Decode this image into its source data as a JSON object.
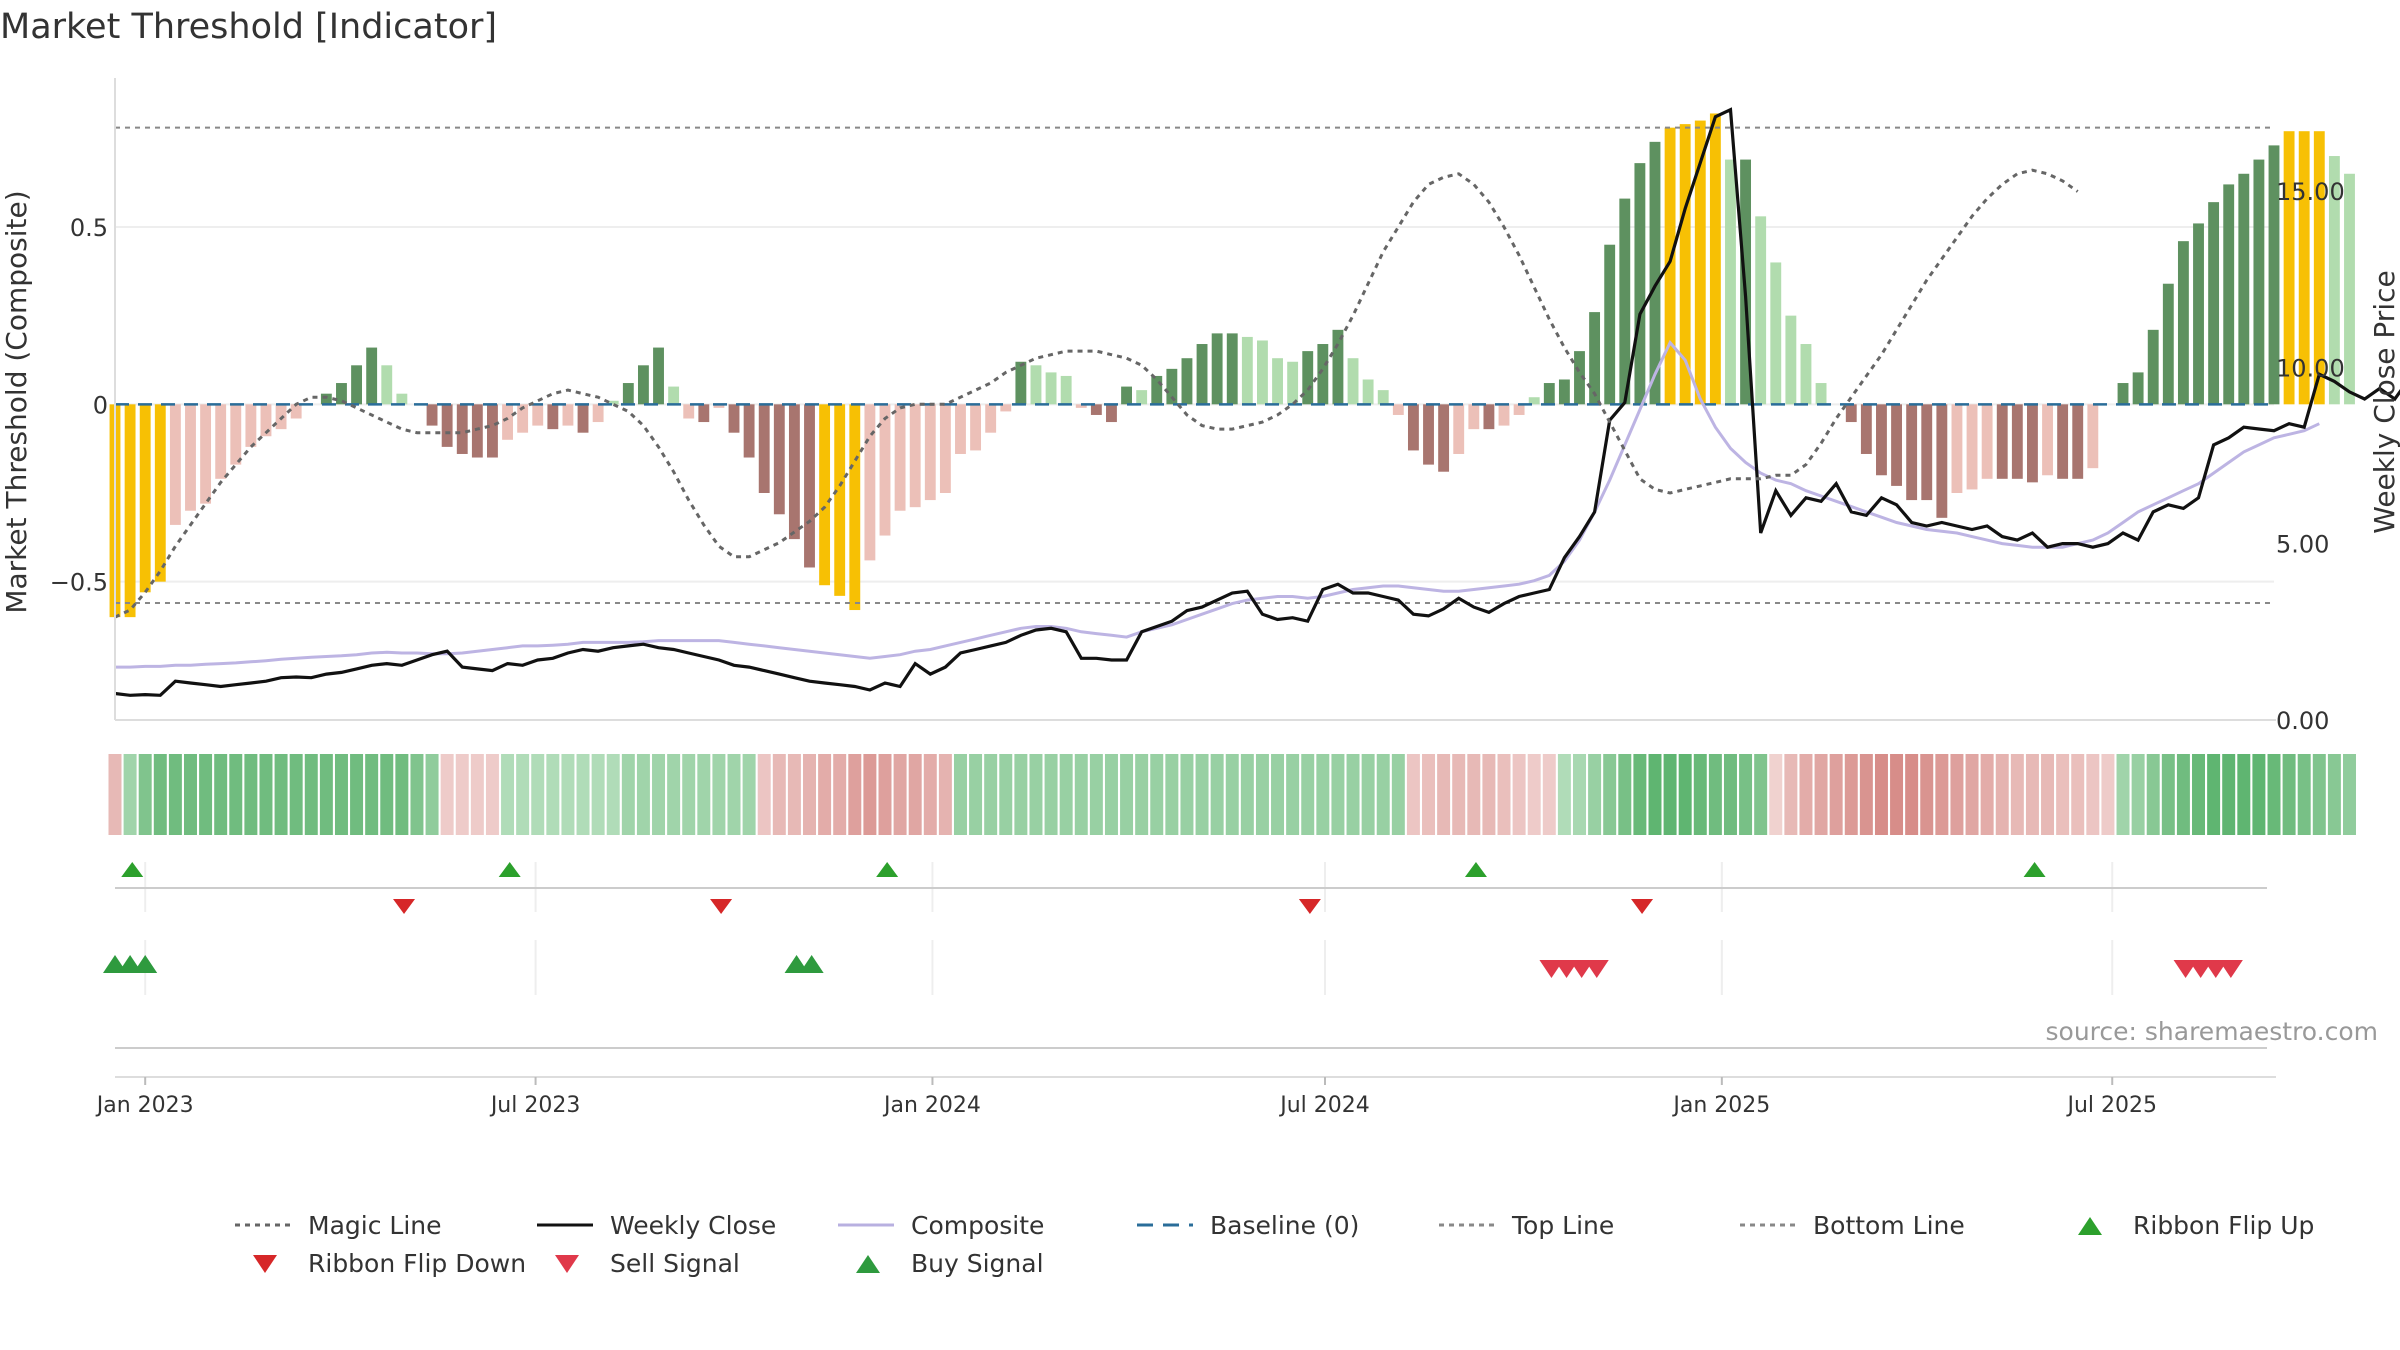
{
  "chart_data": {
    "type": "bar",
    "title": "Market Threshold [Indicator]",
    "ylabel_left": "Market Threshold (Composite)",
    "ylabel_right": "Weekly Close Price",
    "source": "source: sharemaestro.com",
    "x_start": "2022-12-18",
    "x_end": "2025-09-14",
    "week_count": 144,
    "ylim_left": [
      -0.89,
      0.92
    ],
    "ylim_right": [
      0,
      18.2
    ],
    "yticks_left": [
      {
        "value": -0.5,
        "label": "−0.5"
      },
      {
        "value": 0,
        "label": "0"
      },
      {
        "value": 0.5,
        "label": "0.5"
      }
    ],
    "yticks_right": [
      {
        "value": 0,
        "label": "0.00"
      },
      {
        "value": 5,
        "label": "5.00"
      },
      {
        "value": 10,
        "label": "10.00"
      },
      {
        "value": 15,
        "label": "15.00"
      }
    ],
    "xticks": [
      {
        "date": "2023-01-01",
        "label": "Jan 2023"
      },
      {
        "date": "2023-07-01",
        "label": "Jul 2023"
      },
      {
        "date": "2024-01-01",
        "label": "Jan 2024"
      },
      {
        "date": "2024-07-01",
        "label": "Jul 2024"
      },
      {
        "date": "2025-01-01",
        "label": "Jan 2025"
      },
      {
        "date": "2025-07-01",
        "label": "Jul 2025"
      }
    ],
    "top_line": 0.78,
    "bottom_line": -0.56,
    "threshold_bars": [
      -0.6,
      -0.6,
      -0.53,
      -0.5,
      -0.34,
      -0.3,
      -0.28,
      -0.21,
      -0.17,
      -0.12,
      -0.09,
      -0.07,
      -0.04,
      0,
      0.03,
      0.06,
      0.11,
      0.16,
      0.11,
      0.03,
      0,
      -0.06,
      -0.12,
      -0.14,
      -0.15,
      -0.15,
      -0.1,
      -0.08,
      -0.06,
      -0.07,
      -0.06,
      -0.08,
      -0.05,
      0.01,
      0.06,
      0.11,
      0.16,
      0.05,
      -0.04,
      -0.05,
      -0.01,
      -0.08,
      -0.15,
      -0.25,
      -0.31,
      -0.38,
      -0.46,
      -0.51,
      -0.54,
      -0.58,
      -0.44,
      -0.37,
      -0.3,
      -0.29,
      -0.27,
      -0.25,
      -0.14,
      -0.13,
      -0.08,
      -0.02,
      0.12,
      0.11,
      0.09,
      0.08,
      -0.01,
      -0.03,
      -0.05,
      0.05,
      0.04,
      0.08,
      0.1,
      0.13,
      0.17,
      0.2,
      0.2,
      0.19,
      0.18,
      0.13,
      0.12,
      0.15,
      0.17,
      0.21,
      0.13,
      0.07,
      0.04,
      -0.03,
      -0.13,
      -0.17,
      -0.19,
      -0.14,
      -0.07,
      -0.07,
      -0.06,
      -0.03,
      0.02,
      0.06,
      0.07,
      0.15,
      0.26,
      0.45,
      0.58,
      0.68,
      0.74,
      0.78,
      0.79,
      0.8,
      0.82,
      0.69,
      0.69,
      0.53,
      0.4,
      0.25,
      0.17,
      0.06,
      0,
      -0.05,
      -0.14,
      -0.2,
      -0.23,
      -0.27,
      -0.27,
      -0.32,
      -0.25,
      -0.24,
      -0.21,
      -0.21,
      -0.21,
      -0.22,
      -0.2,
      -0.21,
      -0.21,
      -0.18,
      0,
      0.06,
      0.09,
      0.21,
      0.34,
      0.46,
      0.51,
      0.57,
      0.62,
      0.65,
      0.69,
      0.73,
      0.77,
      0.77,
      0.77,
      0.7,
      0.65
    ],
    "ribbon_scores": [
      -0.3,
      0.4,
      0.6,
      0.7,
      0.7,
      0.7,
      0.7,
      0.7,
      0.7,
      0.7,
      0.7,
      0.7,
      0.7,
      0.7,
      0.7,
      0.7,
      0.7,
      0.7,
      0.7,
      0.7,
      0.6,
      0.5,
      -0.15,
      -0.15,
      -0.15,
      -0.15,
      0.3,
      0.3,
      0.3,
      0.3,
      0.3,
      0.3,
      0.3,
      0.3,
      0.4,
      0.4,
      0.4,
      0.4,
      0.4,
      0.4,
      0.4,
      0.4,
      0.4,
      -0.2,
      -0.3,
      -0.3,
      -0.35,
      -0.4,
      -0.4,
      -0.5,
      -0.55,
      -0.5,
      -0.45,
      -0.45,
      -0.4,
      -0.35,
      0.45,
      0.45,
      0.45,
      0.45,
      0.45,
      0.45,
      0.45,
      0.45,
      0.45,
      0.45,
      0.45,
      0.45,
      0.45,
      0.45,
      0.45,
      0.45,
      0.45,
      0.45,
      0.45,
      0.45,
      0.45,
      0.45,
      0.45,
      0.45,
      0.45,
      0.45,
      0.45,
      0.45,
      0.45,
      0.45,
      -0.2,
      -0.25,
      -0.3,
      -0.3,
      -0.3,
      -0.3,
      -0.25,
      -0.2,
      -0.15,
      -0.15,
      0.3,
      0.35,
      0.45,
      0.55,
      0.65,
      0.75,
      0.8,
      0.8,
      0.8,
      0.75,
      0.7,
      0.7,
      0.65,
      0.6,
      -0.1,
      -0.3,
      -0.4,
      -0.45,
      -0.5,
      -0.55,
      -0.6,
      -0.65,
      -0.65,
      -0.65,
      -0.6,
      -0.55,
      -0.5,
      -0.45,
      -0.4,
      -0.35,
      -0.3,
      -0.3,
      -0.3,
      -0.25,
      -0.25,
      -0.2,
      -0.15,
      0.4,
      0.45,
      0.55,
      0.65,
      0.7,
      0.75,
      0.8,
      0.8,
      0.8,
      0.8,
      0.75,
      0.7,
      0.65,
      0.6,
      0.55,
      0.5
    ],
    "series": [
      {
        "name": "Magic Line",
        "values": [
          -0.6,
          -0.58,
          -0.53,
          -0.47,
          -0.4,
          -0.34,
          -0.28,
          -0.22,
          -0.17,
          -0.12,
          -0.08,
          -0.04,
          0,
          0.02,
          0.02,
          0.01,
          -0.01,
          -0.03,
          -0.05,
          -0.07,
          -0.08,
          -0.08,
          -0.08,
          -0.08,
          -0.07,
          -0.06,
          -0.04,
          -0.01,
          0.01,
          0.03,
          0.04,
          0.03,
          0.02,
          0,
          -0.02,
          -0.06,
          -0.12,
          -0.19,
          -0.27,
          -0.34,
          -0.4,
          -0.43,
          -0.43,
          -0.41,
          -0.39,
          -0.36,
          -0.33,
          -0.29,
          -0.23,
          -0.16,
          -0.09,
          -0.04,
          -0.01,
          0,
          0,
          0,
          0.02,
          0.04,
          0.06,
          0.09,
          0.11,
          0.13,
          0.14,
          0.15,
          0.15,
          0.15,
          0.14,
          0.13,
          0.11,
          0.07,
          0.02,
          -0.03,
          -0.06,
          -0.07,
          -0.07,
          -0.06,
          -0.05,
          -0.03,
          0,
          0.04,
          0.1,
          0.17,
          0.25,
          0.34,
          0.43,
          0.5,
          0.57,
          0.62,
          0.64,
          0.65,
          0.62,
          0.57,
          0.5,
          0.42,
          0.33,
          0.24,
          0.16,
          0.09,
          0.03,
          -0.05,
          -0.13,
          -0.21,
          -0.24,
          -0.25,
          -0.24,
          -0.23,
          -0.22,
          -0.21,
          -0.21,
          -0.21,
          -0.2,
          -0.2,
          -0.17,
          -0.11,
          -0.04,
          0.02,
          0.08,
          0.14,
          0.21,
          0.28,
          0.35,
          0.41,
          0.47,
          0.53,
          0.58,
          0.62,
          0.65,
          0.66,
          0.65,
          0.63,
          0.6
        ]
      },
      {
        "name": "Weekly Close",
        "values": [
          0.75,
          0.7,
          0.72,
          0.7,
          1.1,
          1.05,
          1,
          0.95,
          1,
          1.05,
          1.1,
          1.2,
          1.22,
          1.2,
          1.3,
          1.35,
          1.45,
          1.55,
          1.6,
          1.55,
          1.7,
          1.85,
          1.95,
          1.5,
          1.45,
          1.4,
          1.6,
          1.55,
          1.7,
          1.75,
          1.9,
          2,
          1.95,
          2.05,
          2.1,
          2.15,
          2.05,
          2.0,
          1.9,
          1.8,
          1.7,
          1.55,
          1.5,
          1.4,
          1.3,
          1.2,
          1.1,
          1.05,
          1.0,
          0.95,
          0.85,
          1.05,
          0.95,
          1.6,
          1.3,
          1.5,
          1.9,
          2.0,
          2.1,
          2.2,
          2.4,
          2.55,
          2.6,
          2.5,
          1.75,
          1.75,
          1.7,
          1.7,
          2.5,
          2.65,
          2.8,
          3.1,
          3.2,
          3.4,
          3.6,
          3.65,
          3.0,
          2.85,
          2.9,
          2.8,
          3.7,
          3.85,
          3.6,
          3.6,
          3.5,
          3.4,
          3.0,
          2.95,
          3.15,
          3.45,
          3.2,
          3.05,
          3.3,
          3.5,
          3.6,
          3.7,
          4.6,
          5.2,
          5.9,
          8.5,
          9.0,
          11.5,
          12.3,
          13.0,
          14.5,
          15.8,
          17.1,
          17.3,
          12.0,
          5.3,
          6.5,
          5.8,
          6.3,
          6.2,
          6.7,
          5.9,
          5.8,
          6.3,
          6.1,
          5.6,
          5.5,
          5.6,
          5.5,
          5.4,
          5.5,
          5.2,
          5.1,
          5.3,
          4.9,
          5.0,
          5.0,
          4.9,
          5.0,
          5.3,
          5.1,
          5.9,
          6.1,
          6.0,
          6.3,
          7.8,
          8.0,
          8.3,
          8.25,
          8.2,
          8.4,
          8.3,
          9.8,
          9.6,
          9.3,
          9.1,
          9.4,
          9.1,
          9.7
        ]
      },
      {
        "name": "Composite",
        "values": [
          1.5,
          1.5,
          1.52,
          1.52,
          1.55,
          1.55,
          1.58,
          1.6,
          1.62,
          1.65,
          1.68,
          1.72,
          1.75,
          1.78,
          1.8,
          1.82,
          1.85,
          1.9,
          1.92,
          1.9,
          1.9,
          1.88,
          1.88,
          1.9,
          1.95,
          2.0,
          2.05,
          2.1,
          2.1,
          2.12,
          2.15,
          2.2,
          2.2,
          2.2,
          2.2,
          2.22,
          2.25,
          2.25,
          2.25,
          2.25,
          2.25,
          2.2,
          2.15,
          2.1,
          2.05,
          2.0,
          1.95,
          1.9,
          1.85,
          1.8,
          1.75,
          1.8,
          1.85,
          1.95,
          2.0,
          2.1,
          2.2,
          2.3,
          2.4,
          2.5,
          2.6,
          2.65,
          2.65,
          2.6,
          2.5,
          2.45,
          2.4,
          2.35,
          2.5,
          2.6,
          2.7,
          2.85,
          3.0,
          3.15,
          3.3,
          3.4,
          3.45,
          3.5,
          3.5,
          3.45,
          3.5,
          3.6,
          3.7,
          3.75,
          3.8,
          3.8,
          3.75,
          3.7,
          3.65,
          3.65,
          3.7,
          3.75,
          3.8,
          3.85,
          3.95,
          4.1,
          4.5,
          5.1,
          5.9,
          6.8,
          7.8,
          8.8,
          9.8,
          10.7,
          10.2,
          9.1,
          8.3,
          7.7,
          7.3,
          7.0,
          6.8,
          6.7,
          6.5,
          6.35,
          6.2,
          6.05,
          5.9,
          5.75,
          5.6,
          5.5,
          5.4,
          5.35,
          5.3,
          5.2,
          5.1,
          5.0,
          4.95,
          4.9,
          4.9,
          4.9,
          5.0,
          5.1,
          5.3,
          5.6,
          5.9,
          6.1,
          6.3,
          6.5,
          6.7,
          7.0,
          7.3,
          7.6,
          7.8,
          8.0,
          8.1,
          8.2,
          8.4
        ]
      }
    ],
    "ribbon_flip_up": [
      "2022-12-26",
      "2023-06-19",
      "2023-12-11",
      "2024-09-09",
      "2025-05-26"
    ],
    "ribbon_flip_down": [
      "2023-05-01",
      "2023-09-25",
      "2024-06-24",
      "2024-11-25"
    ],
    "buy_signals": [
      "2022-12-18",
      "2022-12-25",
      "2023-01-01",
      "2023-10-30",
      "2023-11-06"
    ],
    "sell_signals": [
      "2024-10-14",
      "2024-10-21",
      "2024-10-28",
      "2024-11-04",
      "2025-08-04",
      "2025-08-11",
      "2025-08-18",
      "2025-08-25"
    ],
    "legend": [
      {
        "name": "Magic Line",
        "symbol": "dotted-line",
        "color": "#666666"
      },
      {
        "name": "Weekly Close",
        "symbol": "solid-line",
        "color": "#111111"
      },
      {
        "name": "Composite",
        "symbol": "solid-line",
        "color": "#b8b0e0"
      },
      {
        "name": "Baseline (0)",
        "symbol": "dashed-line",
        "color": "#2a6d99"
      },
      {
        "name": "Top Line",
        "symbol": "dotted-line",
        "color": "#888888"
      },
      {
        "name": "Bottom Line",
        "symbol": "dotted-line",
        "color": "#888888"
      },
      {
        "name": "Ribbon Flip Up",
        "symbol": "triangle-up",
        "color": "#2ca02c"
      },
      {
        "name": "Ribbon Flip Down",
        "symbol": "triangle-down",
        "color": "#d62728"
      },
      {
        "name": "Sell Signal",
        "symbol": "triangle-down",
        "color": "#e0394a"
      },
      {
        "name": "Buy Signal",
        "symbol": "triangle-up",
        "color": "#2e9a3e"
      }
    ],
    "colors": {
      "extreme_bar": "#f7c004",
      "strong_positive": "#5e9160",
      "weak_positive": "#b1dcae",
      "strong_negative": "#a8756f",
      "weak_negative": "#ecc0b8",
      "close_line": "#111111",
      "composite_line": "#bdb4e3",
      "magic_line": "#666666",
      "baseline": "#2a6d99",
      "grid": "#eeeeee",
      "ribbon_up_dark": "#3fa555",
      "ribbon_down_dark": "#c7625d",
      "flip_up": "#2ca02c",
      "flip_down": "#d62728",
      "buy": "#2e9a3e",
      "sell": "#e0394a"
    }
  }
}
